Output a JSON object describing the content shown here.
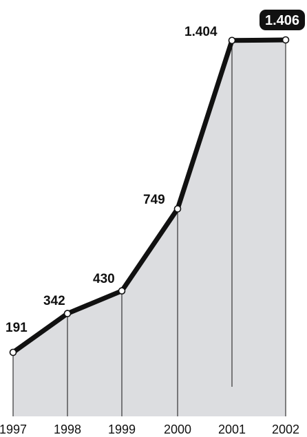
{
  "chart_data": {
    "type": "area",
    "title": "",
    "xlabel": "",
    "ylabel": "",
    "categories": [
      "1997",
      "1998",
      "1999",
      "2000",
      "2001",
      "2002"
    ],
    "values": [
      191,
      342,
      430,
      749,
      1404,
      1406
    ],
    "data_labels": [
      "191",
      "342",
      "430",
      "749",
      "1.404",
      "1.406"
    ],
    "highlighted_label_index": 5,
    "ylim": [
      0,
      1406
    ],
    "grid": false,
    "legend": "none",
    "colors": {
      "fill": "#dcdde0",
      "line": "#111111",
      "highlight_bg": "#111111",
      "highlight_text": "#ffffff"
    }
  }
}
